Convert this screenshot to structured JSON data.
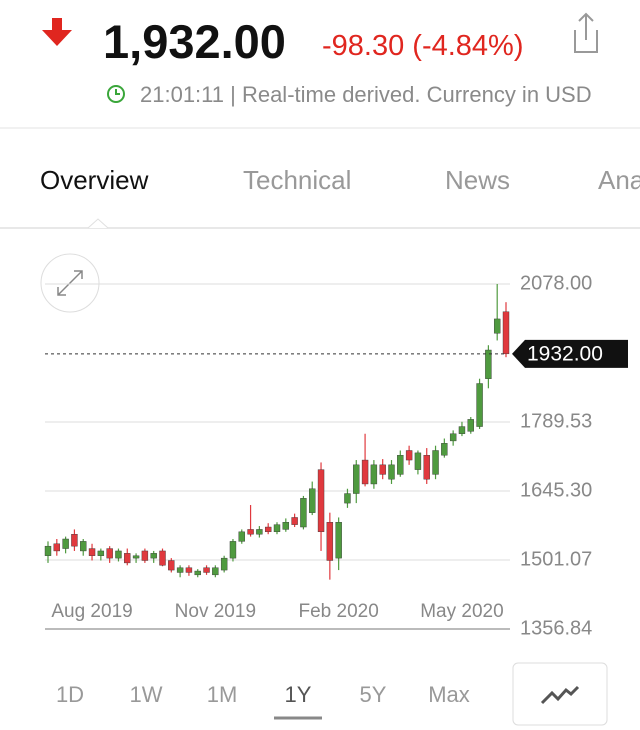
{
  "header": {
    "price": "1,932.00",
    "change": "-98.30 (-4.84%)",
    "status": "21:01:11 | Real-time derived. Currency in USD"
  },
  "tabs": [
    "Overview",
    "Technical",
    "News",
    "Analysis"
  ],
  "range_buttons": [
    "1D",
    "1W",
    "1M",
    "1Y",
    "5Y",
    "Max"
  ],
  "chart_data": {
    "type": "candlestick",
    "categories": [
      null,
      null,
      null,
      null,
      null,
      "Aug 2019",
      null,
      null,
      null,
      null,
      null,
      null,
      null,
      null,
      null,
      null,
      null,
      null,
      null,
      "Nov 2019",
      null,
      null,
      null,
      null,
      null,
      null,
      null,
      null,
      null,
      null,
      null,
      null,
      null,
      "Feb 2020",
      null,
      null,
      null,
      null,
      null,
      null,
      null,
      null,
      null,
      null,
      null,
      null,
      null,
      "May 2020",
      null,
      null,
      null,
      null,
      null
    ],
    "open": [
      1510,
      1535,
      1525,
      1555,
      1520,
      1525,
      1510,
      1525,
      1505,
      1515,
      1505,
      1520,
      1505,
      1520,
      1500,
      1475,
      1485,
      1470,
      1485,
      1470,
      1480,
      1505,
      1540,
      1565,
      1555,
      1570,
      1560,
      1565,
      1590,
      1570,
      1600,
      1690,
      1580,
      1505,
      1620,
      1640,
      1710,
      1660,
      1700,
      1670,
      1680,
      1730,
      1690,
      1720,
      1680,
      1720,
      1750,
      1765,
      1770,
      1780,
      1880,
      1975,
      2020
    ],
    "high": [
      1540,
      1545,
      1550,
      1565,
      1545,
      1535,
      1525,
      1530,
      1525,
      1525,
      1515,
      1525,
      1520,
      1525,
      1505,
      1490,
      1490,
      1482,
      1490,
      1490,
      1510,
      1545,
      1565,
      1616,
      1572,
      1578,
      1580,
      1588,
      1598,
      1635,
      1665,
      1705,
      1600,
      1590,
      1650,
      1710,
      1765,
      1710,
      1712,
      1710,
      1730,
      1740,
      1730,
      1735,
      1740,
      1755,
      1772,
      1790,
      1800,
      1880,
      1950,
      2078,
      2040
    ],
    "low": [
      1495,
      1510,
      1515,
      1520,
      1510,
      1500,
      1500,
      1495,
      1498,
      1490,
      1495,
      1495,
      1495,
      1488,
      1475,
      1465,
      1468,
      1465,
      1470,
      1465,
      1475,
      1498,
      1535,
      1550,
      1548,
      1555,
      1555,
      1560,
      1570,
      1565,
      1595,
      1520,
      1460,
      1480,
      1610,
      1620,
      1655,
      1650,
      1670,
      1660,
      1675,
      1700,
      1680,
      1660,
      1670,
      1715,
      1740,
      1760,
      1765,
      1775,
      1860,
      1960,
      1925
    ],
    "close": [
      1530,
      1520,
      1545,
      1530,
      1540,
      1510,
      1520,
      1505,
      1520,
      1495,
      1510,
      1500,
      1515,
      1490,
      1480,
      1485,
      1475,
      1478,
      1475,
      1485,
      1505,
      1540,
      1560,
      1555,
      1565,
      1560,
      1575,
      1580,
      1575,
      1630,
      1650,
      1560,
      1500,
      1580,
      1640,
      1700,
      1660,
      1700,
      1680,
      1700,
      1720,
      1710,
      1725,
      1670,
      1730,
      1745,
      1765,
      1780,
      1795,
      1870,
      1940,
      2005,
      1932
    ],
    "up_color": "#4f9a3f",
    "down_color": "#e0393e",
    "ylim": [
      1356.84,
      2078
    ],
    "yticks": [
      {
        "value": 2078,
        "label": "2078.00"
      },
      1789.53,
      {
        "value": 1645.3,
        "label": "1645.30"
      },
      1501.07,
      1356.84
    ],
    "last_price": {
      "value": 1932,
      "label": "1932.00"
    },
    "grid": true
  }
}
